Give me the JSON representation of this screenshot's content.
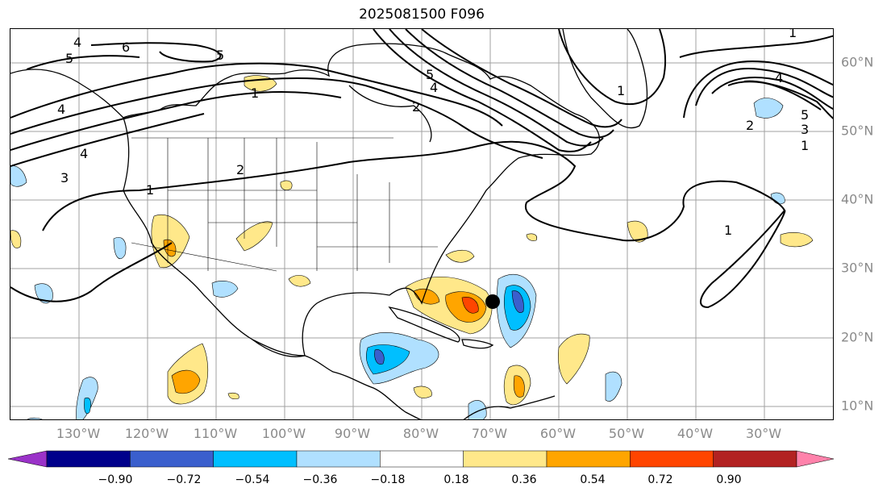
{
  "title": "2025081500 F096",
  "lon_labels": [
    "130°W",
    "120°W",
    "110°W",
    "100°W",
    "90°W",
    "80°W",
    "70°W",
    "60°W",
    "50°W",
    "40°W",
    "30°W"
  ],
  "lat_labels": [
    "60°N",
    "50°N",
    "40°N",
    "30°N",
    "20°N",
    "10°N"
  ],
  "colorbar": {
    "tick_labels": [
      "−0.90",
      "−0.72",
      "−0.54",
      "−0.36",
      "−0.18",
      "0.18",
      "0.36",
      "0.54",
      "0.72",
      "0.90"
    ],
    "colors": [
      "#9a32c8",
      "#00008b",
      "#3a5fcd",
      "#00bfff",
      "#b0e0ff",
      "#ffffff",
      "#ffe88a",
      "#ffa500",
      "#ff4500",
      "#b22222",
      "#ff82ab"
    ]
  },
  "contour_labels": [
    "4",
    "5",
    "6",
    "5",
    "1",
    "5",
    "4",
    "2",
    "4",
    "3",
    "4",
    "1",
    "2",
    "1",
    "4",
    "2",
    "5",
    "3",
    "1",
    "1",
    "1"
  ],
  "colors": {
    "contour": "#000000",
    "grid": "#a0a0a0",
    "coast": "#000000",
    "marker": "#000000"
  }
}
